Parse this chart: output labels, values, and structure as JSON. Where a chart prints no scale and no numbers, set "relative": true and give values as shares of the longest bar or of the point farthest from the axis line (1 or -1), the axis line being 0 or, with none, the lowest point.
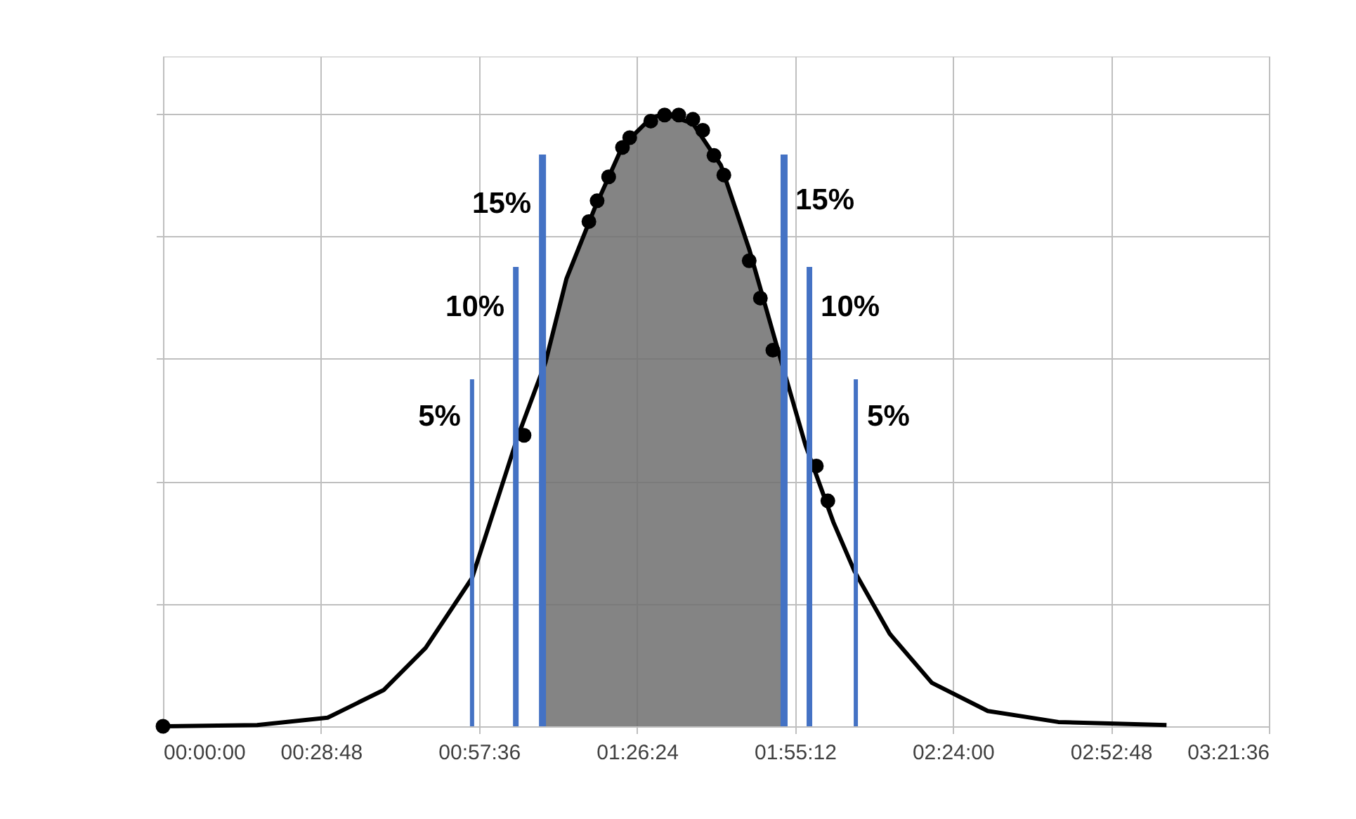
{
  "chart_data": {
    "type": "line",
    "relative": true,
    "grid": true,
    "xlim": [
      0,
      3.36
    ],
    "xticks": [
      {
        "value": 0,
        "label": "00:00:00"
      },
      {
        "value": 0.48,
        "label": "00:28:48"
      },
      {
        "value": 0.96,
        "label": "00:57:36"
      },
      {
        "value": 1.44,
        "label": "01:26:24"
      },
      {
        "value": 1.92,
        "label": "01:55:12"
      },
      {
        "value": 2.4,
        "label": "02:24:00"
      },
      {
        "value": 2.88,
        "label": "02:52:48"
      },
      {
        "value": 3.36,
        "label": "03:21:36"
      }
    ],
    "series": [
      {
        "type": "area",
        "color": "#6e6e6e",
        "x": [
          1.153,
          1.226,
          1.311,
          1.397,
          1.482,
          1.524,
          1.61,
          1.695,
          1.781,
          1.866,
          1.887
        ],
        "values": [
          0.58,
          0.731,
          0.845,
          0.948,
          0.993,
          1.0,
          0.984,
          0.916,
          0.779,
          0.619,
          0.58
        ]
      },
      {
        "color": "#000000",
        "marker": "none",
        "line_style": "solid",
        "x": [
          0,
          0.286,
          0.5,
          0.67,
          0.798,
          0.939,
          1.076,
          1.162,
          1.226,
          1.311,
          1.397,
          1.482,
          1.524,
          1.61,
          1.695,
          1.781,
          1.866,
          1.952,
          2.037,
          2.101,
          2.208,
          2.336,
          2.506,
          2.72,
          3.049
        ],
        "values": [
          0,
          0.002,
          0.014,
          0.059,
          0.128,
          0.242,
          0.47,
          0.594,
          0.731,
          0.845,
          0.948,
          0.993,
          1.0,
          0.984,
          0.916,
          0.779,
          0.619,
          0.459,
          0.333,
          0.253,
          0.151,
          0.071,
          0.025,
          0.007,
          0.002
        ]
      },
      {
        "type": "scatter",
        "color": "#000000",
        "marker": "circle",
        "x": [
          0,
          1.097,
          1.294,
          1.319,
          1.354,
          1.396,
          1.418,
          1.482,
          1.524,
          1.567,
          1.61,
          1.64,
          1.674,
          1.704,
          1.781,
          1.815,
          1.853,
          1.985,
          2.02
        ],
        "values": [
          0,
          0.475,
          0.824,
          0.858,
          0.897,
          0.945,
          0.961,
          0.988,
          0.998,
          0.998,
          0.991,
          0.973,
          0.932,
          0.9,
          0.76,
          0.699,
          0.614,
          0.425,
          0.368
        ]
      }
    ],
    "ref_lines": [
      {
        "axis": "x",
        "value": 0.939,
        "color": "#4472c4"
      },
      {
        "axis": "x",
        "value": 1.072,
        "color": "#4472c4"
      },
      {
        "axis": "x",
        "value": 1.153,
        "color": "#4472c4"
      },
      {
        "axis": "x",
        "value": 1.887,
        "color": "#4472c4"
      },
      {
        "axis": "x",
        "value": 1.964,
        "color": "#4472c4"
      },
      {
        "axis": "x",
        "value": 2.105,
        "color": "#4472c4"
      }
    ],
    "annotations": [
      {
        "text": "5%",
        "x": 0.939,
        "y": 0.505
      },
      {
        "text": "10%",
        "x": 1.072,
        "y": 0.683
      },
      {
        "text": "15%",
        "x": 1.153,
        "y": 0.852
      },
      {
        "text": "15%",
        "x": 1.887,
        "y": 0.858
      },
      {
        "text": "10%",
        "x": 1.964,
        "y": 0.683
      },
      {
        "text": "5%",
        "x": 2.105,
        "y": 0.505
      }
    ]
  }
}
